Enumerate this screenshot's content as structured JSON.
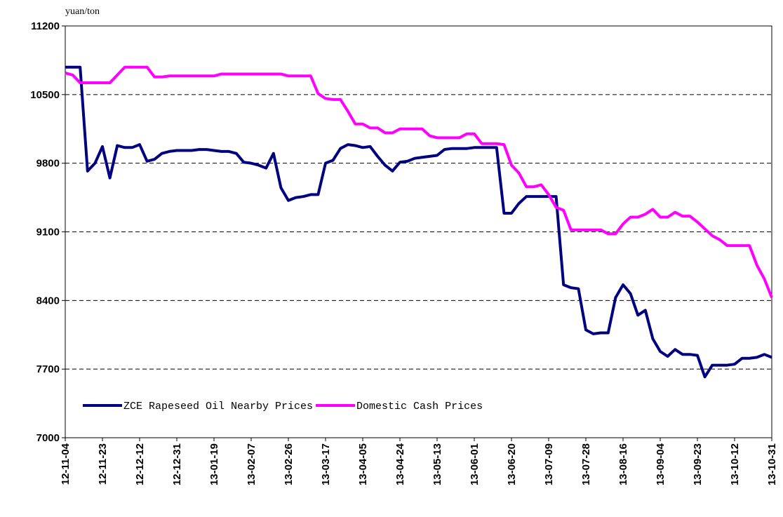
{
  "chart_data": {
    "type": "line",
    "y_axis_label": "yuan/ton",
    "categories": [
      "12-11-04",
      null,
      null,
      null,
      null,
      "12-11-23",
      null,
      null,
      null,
      null,
      "12-12-12",
      null,
      null,
      null,
      null,
      "12-12-31",
      null,
      null,
      null,
      null,
      "13-01-19",
      null,
      null,
      null,
      null,
      "13-02-07",
      null,
      null,
      null,
      null,
      "13-02-26",
      null,
      null,
      null,
      null,
      "13-03-17",
      null,
      null,
      null,
      null,
      "13-04-05",
      null,
      null,
      null,
      null,
      "13-04-24",
      null,
      null,
      null,
      null,
      "13-05-13",
      null,
      null,
      null,
      null,
      "13-06-01",
      null,
      null,
      null,
      null,
      "13-06-20",
      null,
      null,
      null,
      null,
      "13-07-09",
      null,
      null,
      null,
      null,
      "13-07-28",
      null,
      null,
      null,
      null,
      "13-08-16",
      null,
      null,
      null,
      null,
      "13-09-04",
      null,
      null,
      null,
      null,
      "13-09-23",
      null,
      null,
      null,
      null,
      "13-10-12",
      null,
      null,
      null,
      null,
      "13-10-31"
    ],
    "series": [
      {
        "name": "ZCE Rapeseed Oil Nearby Prices",
        "color": "#000080",
        "values": [
          10780,
          10780,
          10780,
          9720,
          9800,
          9970,
          9650,
          9980,
          9960,
          9960,
          9990,
          9820,
          9840,
          9900,
          9920,
          9930,
          9930,
          9930,
          9940,
          9940,
          9930,
          9920,
          9920,
          9900,
          9810,
          9800,
          9780,
          9750,
          9900,
          9550,
          9420,
          9450,
          9460,
          9480,
          9480,
          9800,
          9830,
          9950,
          9990,
          9980,
          9960,
          9970,
          9870,
          9780,
          9720,
          9810,
          9820,
          9850,
          9860,
          9870,
          9880,
          9940,
          9950,
          9950,
          9950,
          9960,
          9960,
          9960,
          9960,
          9290,
          9290,
          9390,
          9460,
          9460,
          9460,
          9460,
          9460,
          8560,
          8530,
          8520,
          8100,
          8060,
          8070,
          8070,
          8430,
          8560,
          8470,
          8250,
          8300,
          8010,
          7880,
          7830,
          7900,
          7850,
          7850,
          7840,
          7620,
          7740,
          7740,
          7740,
          7750,
          7810,
          7810,
          7820,
          7850,
          7820
        ]
      },
      {
        "name": "Domestic Cash Prices",
        "color": "#ff00ff",
        "values": [
          10720,
          10700,
          10620,
          10620,
          10620,
          10620,
          10620,
          10700,
          10780,
          10780,
          10780,
          10780,
          10680,
          10680,
          10690,
          10690,
          10690,
          10690,
          10690,
          10690,
          10690,
          10710,
          10710,
          10710,
          10710,
          10710,
          10710,
          10710,
          10710,
          10710,
          10690,
          10690,
          10690,
          10690,
          10510,
          10460,
          10450,
          10450,
          10330,
          10200,
          10200,
          10160,
          10160,
          10110,
          10110,
          10150,
          10150,
          10150,
          10150,
          10080,
          10060,
          10060,
          10060,
          10060,
          10100,
          10100,
          10000,
          10000,
          10000,
          9990,
          9780,
          9700,
          9560,
          9560,
          9580,
          9480,
          9350,
          9320,
          9120,
          9120,
          9120,
          9120,
          9120,
          9080,
          9080,
          9180,
          9250,
          9250,
          9280,
          9330,
          9250,
          9250,
          9300,
          9260,
          9260,
          9200,
          9130,
          9060,
          9020,
          8960,
          8960,
          8960,
          8960,
          8760,
          8620,
          8430
        ]
      }
    ],
    "ylim": [
      7000,
      11200
    ],
    "yticks": [
      7000,
      7700,
      8400,
      9100,
      9800,
      10500,
      11200
    ],
    "grid": true,
    "legend_position": "lower left"
  }
}
